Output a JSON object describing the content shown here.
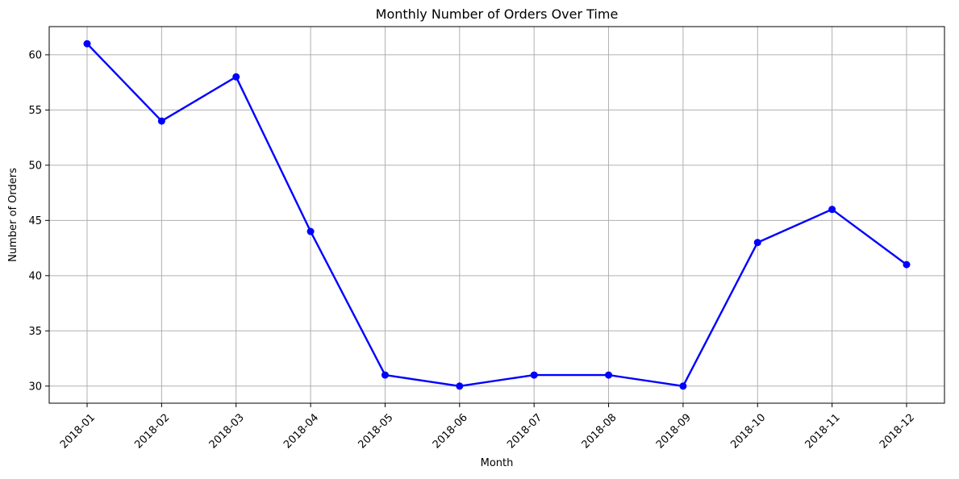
{
  "chart_data": {
    "type": "line",
    "title": "Monthly Number of Orders Over Time",
    "xlabel": "Month",
    "ylabel": "Number of Orders",
    "categories": [
      "2018-01",
      "2018-02",
      "2018-03",
      "2018-04",
      "2018-05",
      "2018-06",
      "2018-07",
      "2018-08",
      "2018-09",
      "2018-10",
      "2018-11",
      "2018-12"
    ],
    "series": [
      {
        "values": [
          61,
          54,
          58,
          44,
          31,
          30,
          31,
          31,
          30,
          43,
          46,
          41
        ],
        "color": "#0000ff",
        "marker": "circle"
      }
    ],
    "yticks": [
      30,
      35,
      40,
      45,
      50,
      55,
      60
    ],
    "ylim": [
      28.45,
      62.55
    ],
    "grid": true,
    "x_tick_rotation": 45,
    "colors": {
      "line": "#0000ff",
      "grid": "#b0b0b0",
      "axes": "#000000",
      "background": "#ffffff"
    }
  }
}
